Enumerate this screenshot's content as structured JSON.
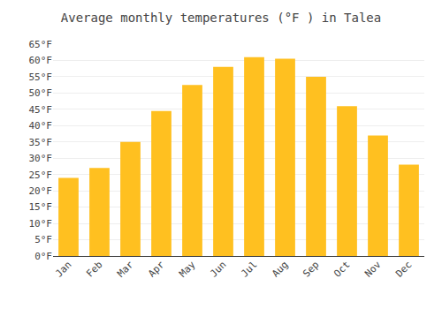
{
  "chart_data": {
    "type": "bar",
    "title": "Average monthly temperatures (°F ) in Talea",
    "categories": [
      "Jan",
      "Feb",
      "Mar",
      "Apr",
      "May",
      "Jun",
      "Jul",
      "Aug",
      "Sep",
      "Oct",
      "Nov",
      "Dec"
    ],
    "values": [
      24,
      27,
      35,
      44.5,
      52.5,
      58,
      61,
      60.5,
      55,
      46,
      37,
      28
    ],
    "color": "#FFC020",
    "ylim": [
      0,
      65
    ],
    "yticks": [
      {
        "value": 0,
        "label": "0°F"
      },
      {
        "value": 5,
        "label": "5°F"
      },
      {
        "value": 10,
        "label": "10°F"
      },
      {
        "value": 15,
        "label": "15°F"
      },
      {
        "value": 20,
        "label": "20°F"
      },
      {
        "value": 25,
        "label": "25°F"
      },
      {
        "value": 30,
        "label": "30°F"
      },
      {
        "value": 35,
        "label": "35°F"
      },
      {
        "value": 40,
        "label": "40°F"
      },
      {
        "value": 45,
        "label": "45°F"
      },
      {
        "value": 50,
        "label": "50°F"
      },
      {
        "value": 55,
        "label": "55°F"
      },
      {
        "value": 60,
        "label": "60°F"
      },
      {
        "value": 65,
        "label": "65°F"
      }
    ],
    "grid": true
  }
}
